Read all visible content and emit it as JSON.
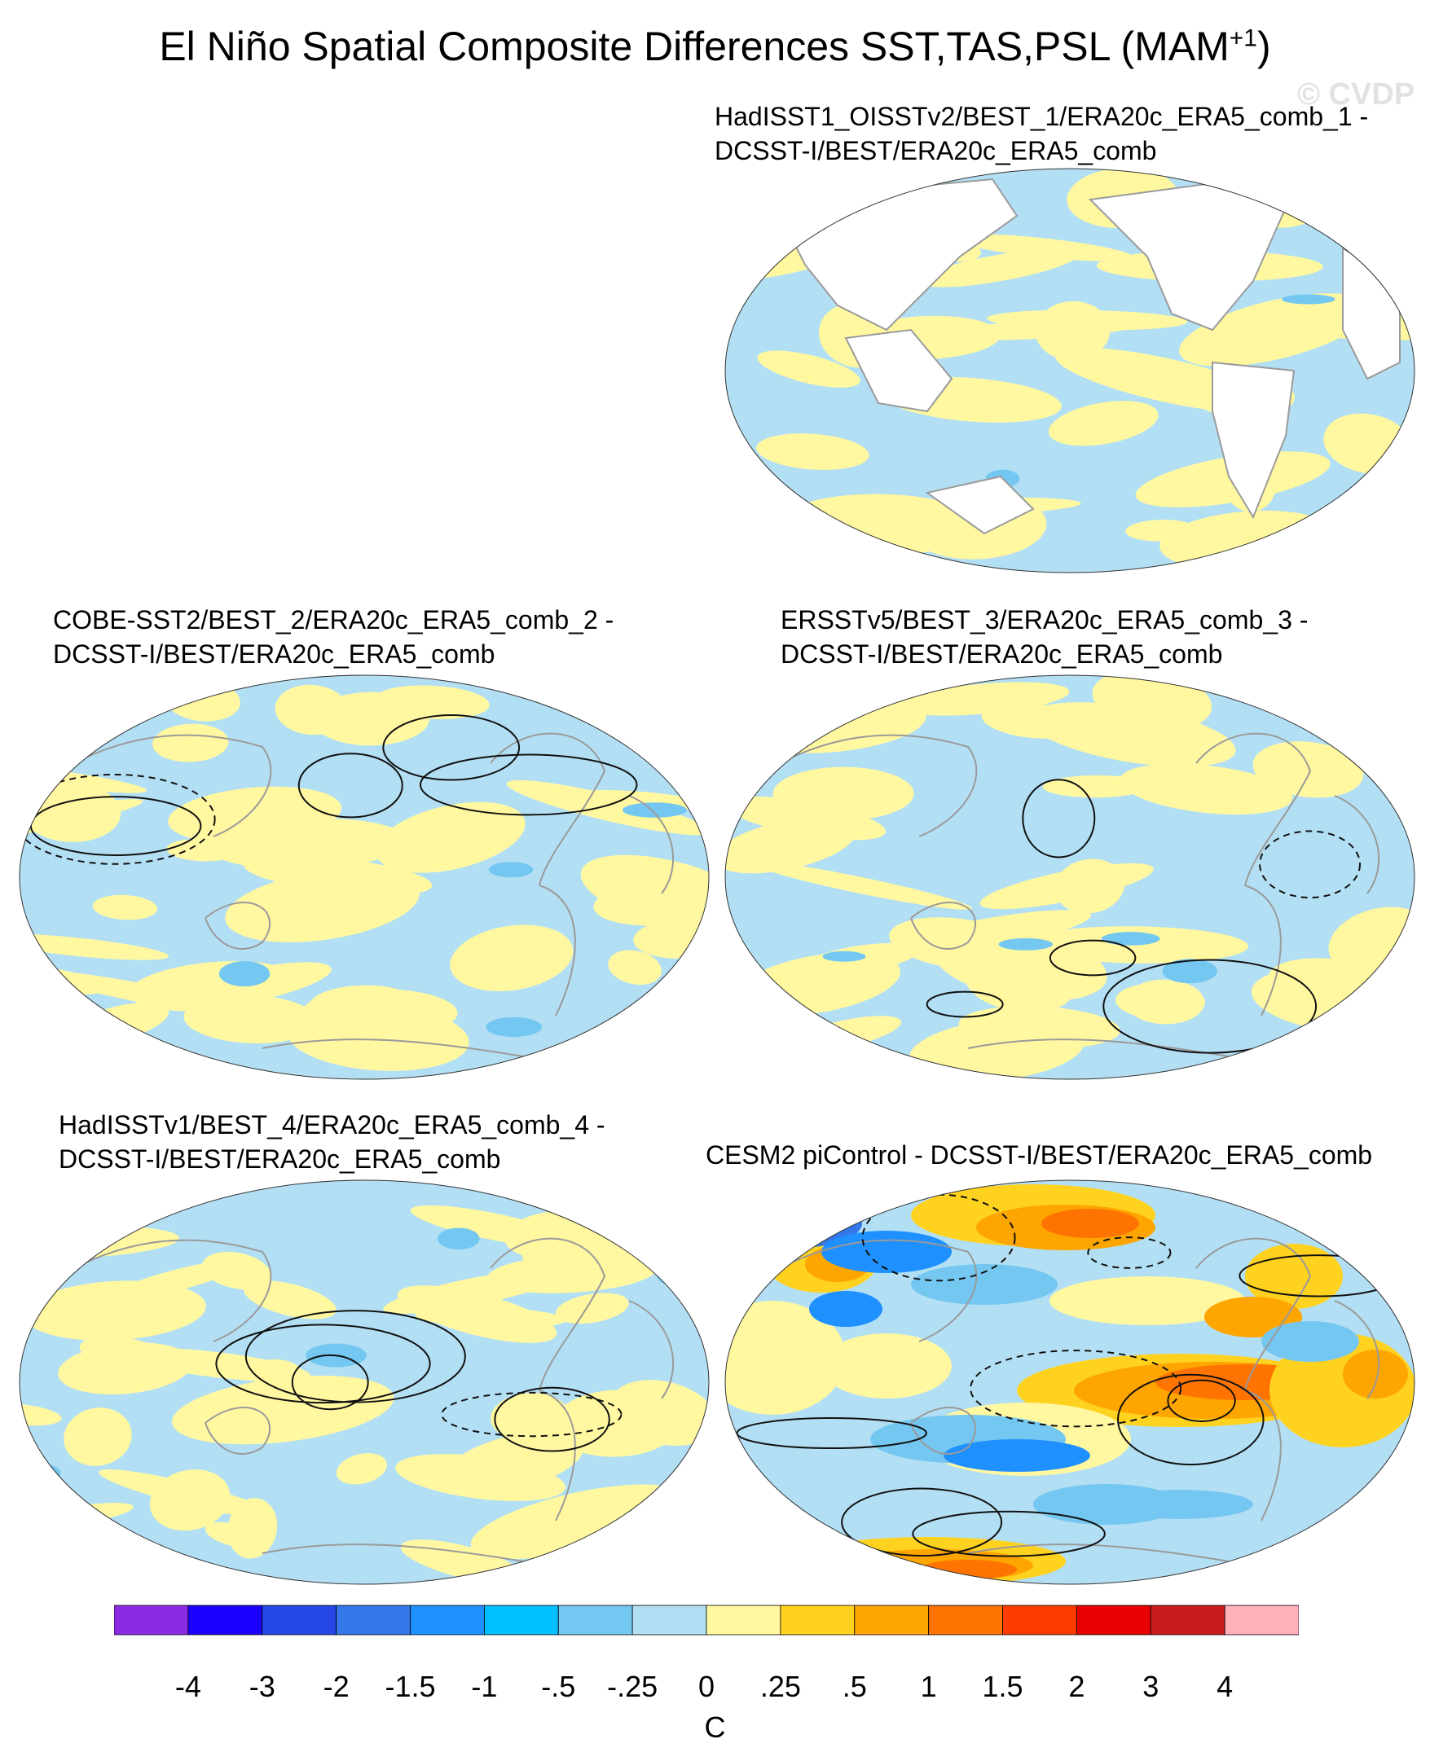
{
  "figure": {
    "title": "El Niño Spatial Composite Differences SST,TAS,PSL (MAM",
    "title_superscript": "+1",
    "title_close": ")",
    "watermark": "© CVDP"
  },
  "panels": [
    {
      "line1": "HadISST1_OISSTv2/BEST_1/ERA20c_ERA5_comb_1 -",
      "line2": "DCSST-I/BEST/ERA20c_ERA5_comb",
      "style": "obs1"
    },
    {
      "line1": "COBE-SST2/BEST_2/ERA20c_ERA5_comb_2 -",
      "line2": "DCSST-I/BEST/ERA20c_ERA5_comb",
      "style": "obs2"
    },
    {
      "line1": "ERSSTv5/BEST_3/ERA20c_ERA5_comb_3 -",
      "line2": "DCSST-I/BEST/ERA20c_ERA5_comb",
      "style": "obs3"
    },
    {
      "line1": "HadISSTv1/BEST_4/ERA20c_ERA5_comb_4 -",
      "line2": "DCSST-I/BEST/ERA20c_ERA5_comb",
      "style": "obs4"
    },
    {
      "line1": "CESM2 piControl - DCSST-I/BEST/ERA20c_ERA5_comb",
      "line2": "",
      "style": "model"
    }
  ],
  "colorbar": {
    "colors": [
      "#8a2be2",
      "#1a00ff",
      "#2447e6",
      "#3377e8",
      "#1e90ff",
      "#00bfff",
      "#74c7f0",
      "#b3dff4",
      "#fff8a0",
      "#ffd21f",
      "#ffa500",
      "#ff7300",
      "#ff3c00",
      "#e60000",
      "#c81c1c",
      "#ffb0b8"
    ],
    "labels": [
      "-4",
      "-3",
      "-2",
      "-1.5",
      "-1",
      "-.5",
      "-.25",
      "0",
      ".25",
      ".5",
      "1",
      "1.5",
      "2",
      "3",
      "4"
    ],
    "units": "C"
  }
}
